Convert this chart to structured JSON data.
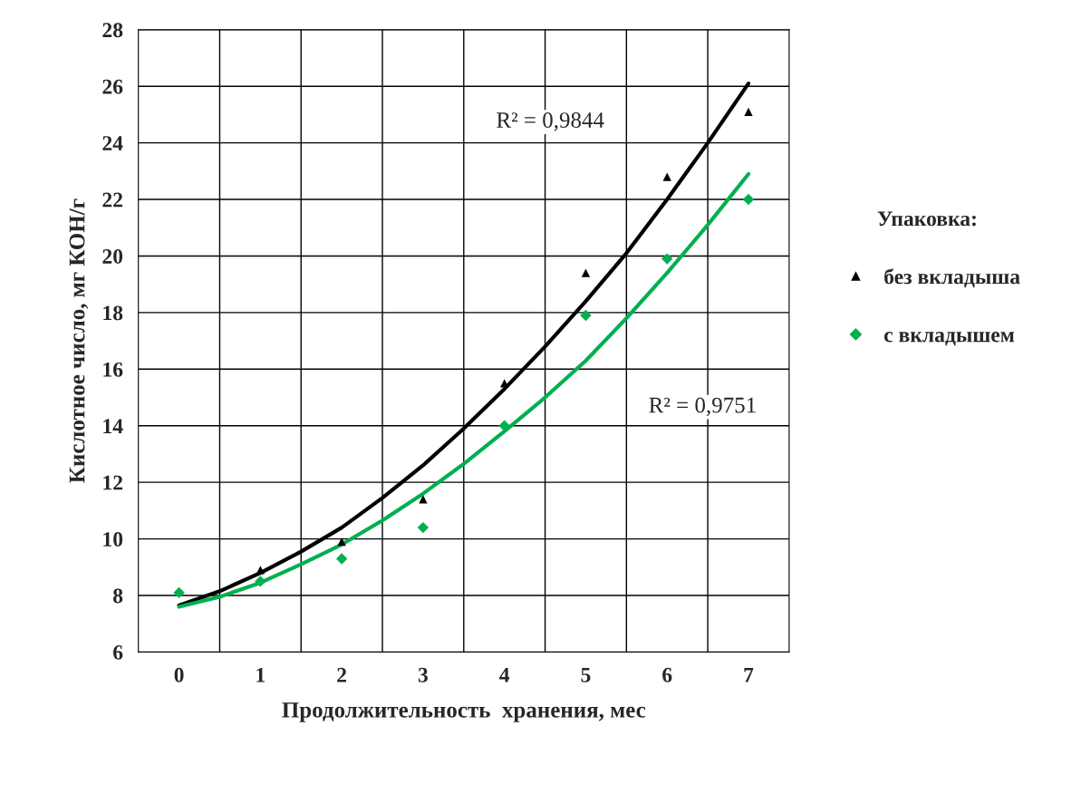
{
  "chart_data": {
    "type": "scatter",
    "xlabel": "Продолжительность  хранения, мес",
    "ylabel": "Кислотное число, мг КОН/г",
    "legend_title": "Упаковка:",
    "x": [
      0,
      1,
      2,
      3,
      4,
      5,
      6,
      7
    ],
    "series": [
      {
        "name": "без вкладыша",
        "color": "#000000",
        "marker": "triangle",
        "values": [
          null,
          8.9,
          9.9,
          11.4,
          15.5,
          19.4,
          22.8,
          25.1
        ]
      },
      {
        "name": "с вкладышем",
        "color": "#00b050",
        "marker": "diamond",
        "values": [
          8.1,
          8.5,
          9.3,
          10.4,
          14.0,
          17.9,
          19.9,
          22.0
        ]
      },
      {
        "type": "line",
        "color": "#000000",
        "x": [
          0,
          0.5,
          1,
          1.5,
          2,
          2.5,
          3,
          3.5,
          4,
          4.5,
          5,
          5.5,
          6,
          6.5,
          7
        ],
        "values": [
          7.65,
          8.15,
          8.8,
          9.55,
          10.4,
          11.45,
          12.6,
          13.9,
          15.3,
          16.8,
          18.4,
          20.1,
          22.0,
          24.0,
          26.1
        ]
      },
      {
        "type": "line",
        "color": "#00b050",
        "x": [
          0,
          0.5,
          1,
          1.5,
          2,
          2.5,
          3,
          3.5,
          4,
          4.5,
          5,
          5.5,
          6,
          6.5,
          7
        ],
        "values": [
          7.6,
          7.95,
          8.45,
          9.1,
          9.8,
          10.65,
          11.6,
          12.65,
          13.8,
          15.0,
          16.3,
          17.8,
          19.4,
          21.1,
          22.9
        ]
      }
    ],
    "annotations": [
      "R² = 0,9844",
      "R² = 0,9751"
    ],
    "xlim": [
      -0.5,
      7.5
    ],
    "xticks": [
      0,
      1,
      2,
      3,
      4,
      5,
      6,
      7
    ],
    "ylim": [
      6,
      28
    ],
    "yticks": [
      6,
      8,
      10,
      12,
      14,
      16,
      18,
      20,
      22,
      24,
      26,
      28
    ],
    "grid": true,
    "legend": "right"
  }
}
